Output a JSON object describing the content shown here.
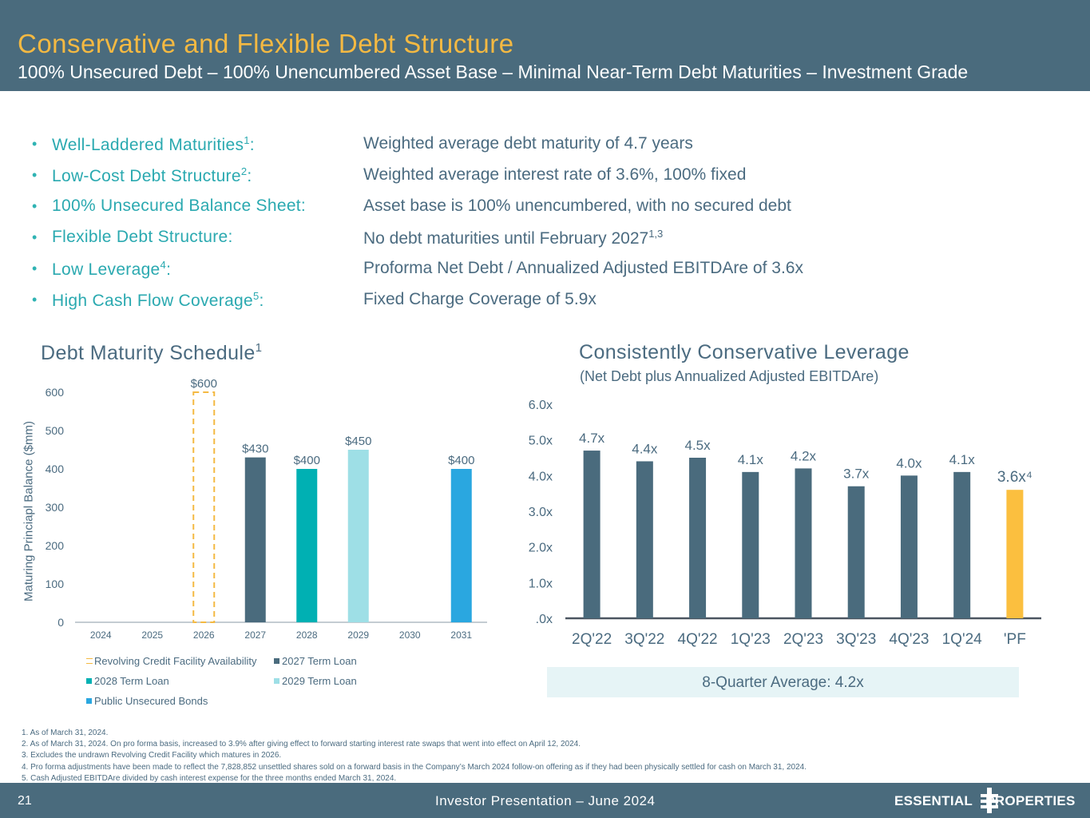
{
  "header": {
    "title": "Conservative and Flexible Debt Structure",
    "subtitle": "100% Unsecured Debt – 100% Unencumbered Asset Base – Minimal Near-Term Debt Maturities – Investment Grade"
  },
  "bullets": [
    {
      "label": "Well-Laddered Maturities",
      "sup": "1",
      "colon": ":",
      "value": "Weighted average debt maturity of 4.7 years",
      "value_sup": ""
    },
    {
      "label": "Low-Cost Debt Structure",
      "sup": "2",
      "colon": ":",
      "value": "Weighted average interest rate of 3.6%, 100% fixed",
      "value_sup": ""
    },
    {
      "label": "100% Unsecured Balance Sheet:",
      "sup": "",
      "colon": "",
      "value": "Asset base is 100% unencumbered, with no secured debt",
      "value_sup": ""
    },
    {
      "label": "Flexible Debt Structure:",
      "sup": "",
      "colon": "",
      "value": "No debt maturities until February 2027",
      "value_sup": "1,3"
    },
    {
      "label": "Low Leverage",
      "sup": "4",
      "colon": ":",
      "value": "Proforma Net Debt / Annualized Adjusted EBITDAre of 3.6x",
      "value_sup": ""
    },
    {
      "label": "High Cash Flow Coverage",
      "sup": "5",
      "colon": ":",
      "value": "Fixed Charge Coverage of 5.9x",
      "value_sup": ""
    }
  ],
  "debt_chart": {
    "title": "Debt Maturity Schedule",
    "title_sup": "1",
    "ylabel": "Maturing Princiapl Balance ($mm)"
  },
  "leverage_chart": {
    "title": "Consistently Conservative Leverage",
    "subtitle": "(Net Debt plus Annualized Adjusted EBITDAre)",
    "average": "8-Quarter Average: 4.2x"
  },
  "chart_data": [
    {
      "type": "bar",
      "title": "Debt Maturity Schedule",
      "xlabel": "",
      "ylabel": "Maturing Princiapl Balance ($mm)",
      "ylim": [
        0,
        600
      ],
      "yticks": [
        0,
        100,
        200,
        300,
        400,
        500,
        600
      ],
      "categories": [
        "2024",
        "2025",
        "2026",
        "2027",
        "2028",
        "2029",
        "2030",
        "2031"
      ],
      "series": [
        {
          "name": "Revolving Credit Facility Availability",
          "color": "#f4b942",
          "style": "dashed-outline",
          "values": [
            0,
            0,
            600,
            0,
            0,
            0,
            0,
            0
          ],
          "labels": [
            "",
            "",
            "$600",
            "",
            "",
            "",
            "",
            ""
          ]
        },
        {
          "name": "2027 Term Loan",
          "color": "#4a6b7d",
          "values": [
            0,
            0,
            0,
            430,
            0,
            0,
            0,
            0
          ],
          "labels": [
            "",
            "",
            "",
            "$430",
            "",
            "",
            "",
            ""
          ]
        },
        {
          "name": "2028 Term Loan",
          "color": "#00b0b3",
          "values": [
            0,
            0,
            0,
            0,
            400,
            0,
            0,
            0
          ],
          "labels": [
            "",
            "",
            "",
            "",
            "$400",
            "",
            "",
            ""
          ]
        },
        {
          "name": "2029 Term Loan",
          "color": "#9edfe6",
          "values": [
            0,
            0,
            0,
            0,
            0,
            450,
            0,
            0
          ],
          "labels": [
            "",
            "",
            "",
            "",
            "",
            "$450",
            "",
            ""
          ]
        },
        {
          "name": "Public Unsecured Bonds",
          "color": "#2aa7e0",
          "values": [
            0,
            0,
            0,
            0,
            0,
            0,
            0,
            400
          ],
          "labels": [
            "",
            "",
            "",
            "",
            "",
            "",
            "",
            "$400"
          ]
        }
      ],
      "legend": "bottom"
    },
    {
      "type": "bar",
      "title": "Consistently Conservative Leverage",
      "subtitle": "(Net Debt plus Annualized Adjusted EBITDAre)",
      "xlabel": "",
      "ylabel": "",
      "ylim": [
        0,
        6
      ],
      "yticks": [
        ".0x",
        "1.0x",
        "2.0x",
        "3.0x",
        "4.0x",
        "5.0x",
        "6.0x"
      ],
      "categories": [
        "2Q'22",
        "3Q'22",
        "4Q'22",
        "1Q'23",
        "2Q'23",
        "3Q'23",
        "4Q'23",
        "1Q'24",
        "'PF"
      ],
      "values": [
        4.7,
        4.4,
        4.5,
        4.1,
        4.2,
        3.7,
        4.0,
        4.1,
        3.6
      ],
      "labels": [
        "4.7x",
        "4.4x",
        "4.5x",
        "4.1x",
        "4.2x",
        "3.7x",
        "4.0x",
        "4.1x",
        "3.6x⁴"
      ],
      "colors": [
        "#4a6b7d",
        "#4a6b7d",
        "#4a6b7d",
        "#4a6b7d",
        "#4a6b7d",
        "#4a6b7d",
        "#4a6b7d",
        "#4a6b7d",
        "#fbbf3f"
      ]
    }
  ],
  "footnotes": [
    "1.  As of March 31, 2024.",
    "2.  As of March 31, 2024. On pro forma basis, increased to 3.9% after giving effect to forward starting interest rate swaps that went into effect on April 12, 2024.",
    "3.  Excludes the undrawn Revolving Credit Facility which matures in 2026.",
    "4.  Pro forma adjustments have been made to reflect the 7,828,852 unsettled shares sold on a forward basis in the Company’s March 2024 follow-on offering as if they had been physically settled for cash on March 31, 2024.",
    "5.  Cash Adjusted EBITDAre divided by cash interest expense for the three months ended March 31, 2024."
  ],
  "footer": {
    "page": "21",
    "presentation": "Investor Presentation – June 2024",
    "logo_left": "ESSENTIAL",
    "logo_right": "PROPERTIES"
  }
}
